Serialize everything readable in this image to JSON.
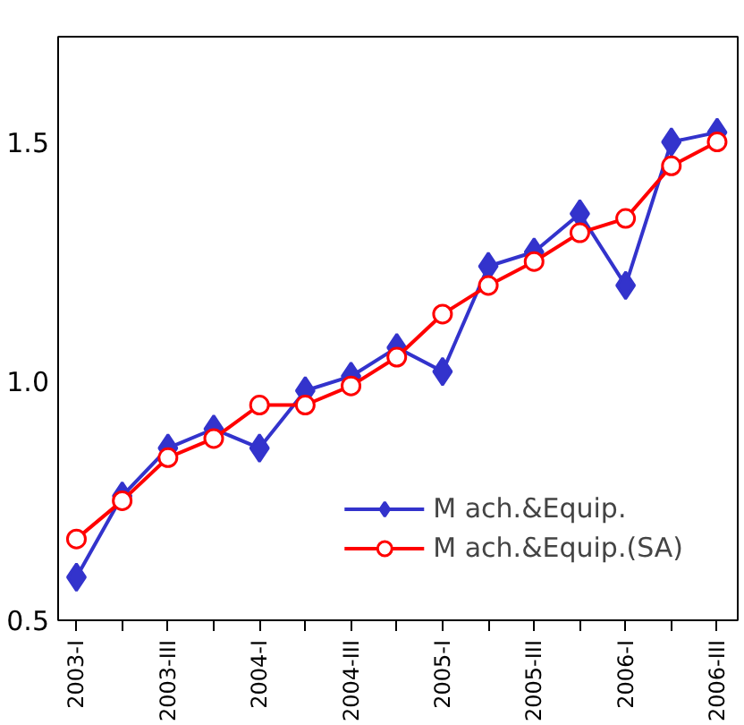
{
  "chart_data": {
    "type": "line",
    "categories": [
      "2003-I",
      null,
      "2003-III",
      null,
      "2004-I",
      null,
      "2004-III",
      null,
      "2005-I",
      null,
      "2005-III",
      null,
      "2006-I",
      null,
      "2006-III"
    ],
    "series": [
      {
        "name": "M ach.&Equip.",
        "color": "#3333cc",
        "marker": "diamond",
        "values": [
          0.59,
          0.76,
          0.86,
          0.9,
          0.86,
          0.98,
          1.01,
          1.07,
          1.02,
          1.24,
          1.27,
          1.35,
          1.2,
          1.5,
          1.52
        ]
      },
      {
        "name": "M ach.&Equip.(SA)",
        "color": "#ff0000",
        "marker": "circle",
        "values": [
          0.67,
          0.75,
          0.84,
          0.88,
          0.95,
          0.95,
          0.99,
          1.05,
          1.14,
          1.2,
          1.25,
          1.31,
          1.34,
          1.45,
          1.5
        ]
      }
    ],
    "ylim": [
      0.5,
      1.72
    ],
    "yticks": [
      {
        "value": 0.5,
        "label": "0.5"
      },
      {
        "value": 1.0,
        "label": "1.0"
      },
      {
        "value": 1.5,
        "label": "1.5"
      }
    ],
    "grid": false,
    "legend": "bottom right",
    "line_style": "solid"
  }
}
